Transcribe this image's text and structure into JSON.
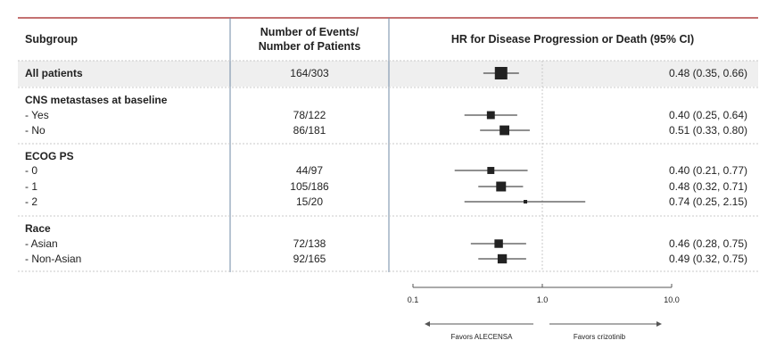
{
  "colors": {
    "top_rule": "#a01c1c",
    "row_highlight": "#efefef",
    "grid": "#c8c8c8",
    "col_divider": "#6f8aa5",
    "marker": "#222222",
    "text": "#222222"
  },
  "headers": {
    "subgroup": "Subgroup",
    "events_line1": "Number of Events/",
    "events_line2": "Number of Patients",
    "hr": "HR for Disease Progression or Death (95% CI)"
  },
  "axis": {
    "scale": "log",
    "ticks": [
      "0.1",
      "1.0",
      "10.0"
    ],
    "favors_left": "Favors ALECENSA",
    "favors_right": "Favors crizotinib"
  },
  "chart_data": {
    "type": "forest",
    "x_scale": "log",
    "xlim": [
      0.1,
      10
    ],
    "reference_line": 1,
    "rows": [
      {
        "kind": "data",
        "label": "All patients",
        "bold": true,
        "highlight": true,
        "events": "164/303",
        "hr": 0.48,
        "lo": 0.35,
        "hi": 0.66,
        "ci_text": "0.48 (0.35, 0.66)",
        "weight": 303
      },
      {
        "kind": "group",
        "label": "CNS metastases at baseline"
      },
      {
        "kind": "data",
        "label": "- Yes",
        "events": "78/122",
        "hr": 0.4,
        "lo": 0.25,
        "hi": 0.64,
        "ci_text": "0.40 (0.25, 0.64)",
        "weight": 122
      },
      {
        "kind": "data",
        "label": "- No",
        "events": "86/181",
        "hr": 0.51,
        "lo": 0.33,
        "hi": 0.8,
        "ci_text": "0.51 (0.33, 0.80)",
        "weight": 181
      },
      {
        "kind": "group",
        "label": "ECOG PS"
      },
      {
        "kind": "data",
        "label": "- 0",
        "events": "44/97",
        "hr": 0.4,
        "lo": 0.21,
        "hi": 0.77,
        "ci_text": "0.40 (0.21, 0.77)",
        "weight": 97
      },
      {
        "kind": "data",
        "label": "- 1",
        "events": "105/186",
        "hr": 0.48,
        "lo": 0.32,
        "hi": 0.71,
        "ci_text": "0.48 (0.32, 0.71)",
        "weight": 186
      },
      {
        "kind": "data",
        "label": "- 2",
        "events": "15/20",
        "hr": 0.74,
        "lo": 0.25,
        "hi": 2.15,
        "ci_text": "0.74 (0.25, 2.15)",
        "weight": 20
      },
      {
        "kind": "group",
        "label": "Race"
      },
      {
        "kind": "data",
        "label": "- Asian",
        "events": "72/138",
        "hr": 0.46,
        "lo": 0.28,
        "hi": 0.75,
        "ci_text": "0.46 (0.28, 0.75)",
        "weight": 138
      },
      {
        "kind": "data",
        "label": "- Non-Asian",
        "events": "92/165",
        "hr": 0.49,
        "lo": 0.32,
        "hi": 0.75,
        "ci_text": "0.49 (0.32, 0.75)",
        "weight": 165
      }
    ]
  }
}
